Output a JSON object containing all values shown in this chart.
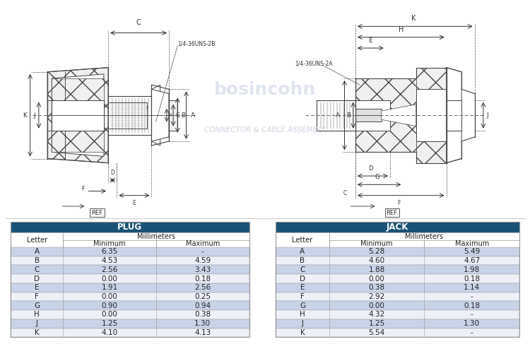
{
  "plug_title": "PLUG",
  "jack_title": "JACK",
  "plug_rows": [
    [
      "A",
      "6.35",
      "-"
    ],
    [
      "B",
      "4.53",
      "4.59"
    ],
    [
      "C",
      "2.56",
      "3.43"
    ],
    [
      "D",
      "0.00",
      "0.18"
    ],
    [
      "E",
      "1.91",
      "2.56"
    ],
    [
      "F",
      "0.00",
      "0.25"
    ],
    [
      "G",
      "0.90",
      "0.94"
    ],
    [
      "H",
      "0.00",
      "0.38"
    ],
    [
      "J",
      "1.25",
      "1.30"
    ],
    [
      "K",
      "4.10",
      "4.13"
    ]
  ],
  "jack_rows": [
    [
      "A",
      "5.28",
      "5.49"
    ],
    [
      "B",
      "4.60",
      "4.67"
    ],
    [
      "C",
      "1.88",
      "1.98"
    ],
    [
      "D",
      "0.00",
      "0.18"
    ],
    [
      "E",
      "0.38",
      "1.14"
    ],
    [
      "F",
      "2.92",
      "-"
    ],
    [
      "G",
      "0.00",
      "0.18"
    ],
    [
      "H",
      "4.32",
      "-"
    ],
    [
      "J",
      "1.25",
      "1.30"
    ],
    [
      "K",
      "5.54",
      "-"
    ]
  ],
  "header_color": "#1a5276",
  "header_text_color": "#ffffff",
  "row_alt_color": "#c8d3e8",
  "row_normal_color": "#eef0f8",
  "text_color": "#222222",
  "border_color": "#999999",
  "bg_color": "#ffffff",
  "line_color": "#444444",
  "hatch_color": "#888888"
}
